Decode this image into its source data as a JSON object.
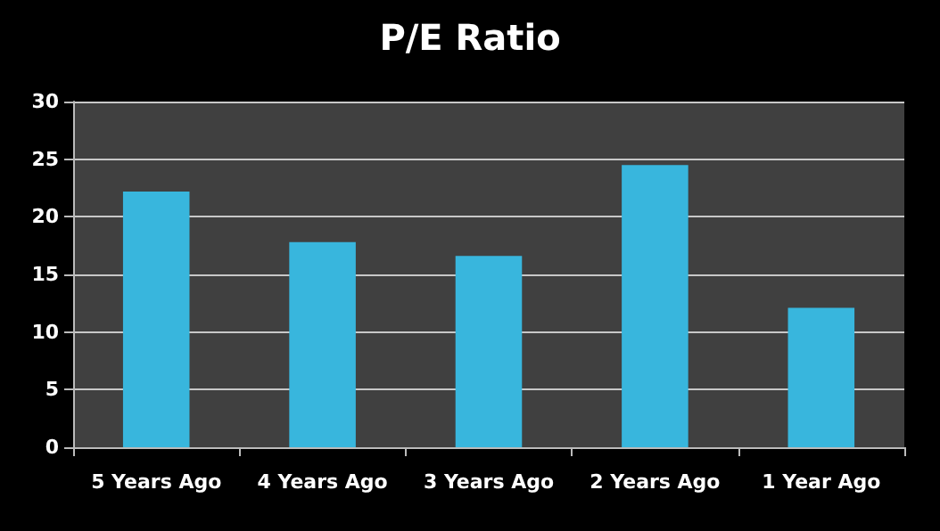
{
  "chart_data": {
    "type": "bar",
    "title": "P/E Ratio",
    "categories": [
      "5 Years Ago",
      "4 Years Ago",
      "3 Years Ago",
      "2 Years Ago",
      "1 Year Ago"
    ],
    "values": [
      22.2,
      17.8,
      16.6,
      24.5,
      12.1
    ],
    "color": "#38b6dd",
    "ylim": [
      0,
      30
    ],
    "yticks": [
      0,
      5,
      10,
      15,
      20,
      25,
      30
    ],
    "grid": "y"
  }
}
